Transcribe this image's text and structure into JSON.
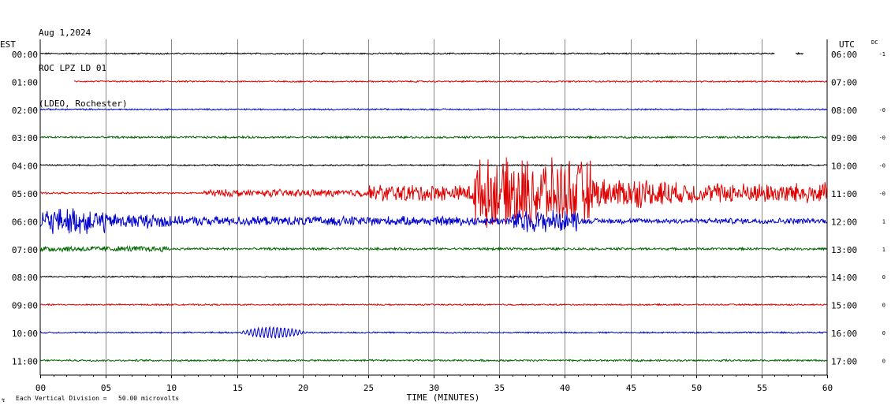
{
  "header": {
    "date": "Aug 1,2024",
    "station": "ROC LPZ LD 01",
    "network": "(LDEO, Rochester)"
  },
  "chart_data": {
    "type": "line",
    "title": "ROC LPZ LD 01",
    "xlabel": "TIME (MINUTES)",
    "x_ticks": [
      "00",
      "05",
      "10",
      "15",
      "20",
      "25",
      "30",
      "35",
      "40",
      "45",
      "50",
      "55",
      "60"
    ],
    "xlim": [
      0,
      60
    ],
    "left_axis_label": "EST",
    "right_axis_label": "UTC",
    "dc_label": "DC",
    "footer": "Each Vertical Division =   50.00 microvolts",
    "footer_glyph": "↯",
    "trace_colors": [
      "#000000",
      "#e00000",
      "#0000cc",
      "#006600"
    ],
    "traces": [
      {
        "est": "00:00",
        "utc": "06:00",
        "dc": "-1",
        "color": "#000000",
        "start_min": 0,
        "end_min": 56,
        "gap_end_start": 57.6,
        "gap_end_end": 58.2,
        "noise": 0.8,
        "bursts": []
      },
      {
        "est": "01:00",
        "utc": "07:00",
        "dc": "",
        "color": "#e00000",
        "start_min": 2.6,
        "end_min": 60,
        "noise": 0.8,
        "bursts": []
      },
      {
        "est": "02:00",
        "utc": "08:00",
        "dc": "-0",
        "color": "#0000cc",
        "start_min": 0,
        "end_min": 60,
        "noise": 0.8,
        "bursts": []
      },
      {
        "est": "03:00",
        "utc": "09:00",
        "dc": "-0",
        "color": "#006600",
        "start_min": 0,
        "end_min": 60,
        "noise": 1.1,
        "bursts": []
      },
      {
        "est": "04:00",
        "utc": "10:00",
        "dc": "-0",
        "color": "#000000",
        "start_min": 0,
        "end_min": 60,
        "noise": 0.8,
        "bursts": []
      },
      {
        "est": "05:00",
        "utc": "11:00",
        "dc": "-0",
        "color": "#e00000",
        "start_min": 0,
        "end_min": 60,
        "noise": 0.9,
        "bursts": [
          {
            "start": 12.5,
            "end": 25,
            "amp": 4
          },
          {
            "start": 25,
            "end": 33,
            "amp": 9
          },
          {
            "start": 33,
            "end": 42,
            "amp": 36
          },
          {
            "start": 42,
            "end": 48,
            "amp": 16
          },
          {
            "start": 48,
            "end": 60,
            "amp": 11
          }
        ]
      },
      {
        "est": "06:00",
        "utc": "12:00",
        "dc": "1",
        "color": "#0000cc",
        "start_min": 0,
        "end_min": 60,
        "noise": 2.2,
        "bursts": [
          {
            "start": 0,
            "end": 5,
            "amp": 14
          },
          {
            "start": 5,
            "end": 10,
            "amp": 8
          },
          {
            "start": 10,
            "end": 36,
            "amp": 5
          },
          {
            "start": 36,
            "end": 41,
            "amp": 12
          },
          {
            "start": 41,
            "end": 60,
            "amp": 3
          }
        ]
      },
      {
        "est": "07:00",
        "utc": "13:00",
        "dc": "1",
        "color": "#006600",
        "start_min": 0,
        "end_min": 60,
        "noise": 1.3,
        "bursts": [
          {
            "start": 0,
            "end": 10,
            "amp": 3
          }
        ]
      },
      {
        "est": "08:00",
        "utc": "14:00",
        "dc": "0",
        "color": "#000000",
        "start_min": 0,
        "end_min": 60,
        "noise": 0.8,
        "bursts": []
      },
      {
        "est": "09:00",
        "utc": "15:00",
        "dc": "0",
        "color": "#e00000",
        "start_min": 0,
        "end_min": 60,
        "noise": 0.8,
        "bursts": []
      },
      {
        "est": "10:00",
        "utc": "16:00",
        "dc": "0",
        "color": "#0000cc",
        "start_min": 0,
        "end_min": 60,
        "noise": 0.8,
        "bursts": [
          {
            "start": 15,
            "end": 20.5,
            "amp": 7,
            "sine": true
          }
        ]
      },
      {
        "est": "11:00",
        "utc": "17:00",
        "dc": "0",
        "color": "#006600",
        "start_min": 0,
        "end_min": 60,
        "noise": 1.0,
        "bursts": []
      }
    ]
  }
}
